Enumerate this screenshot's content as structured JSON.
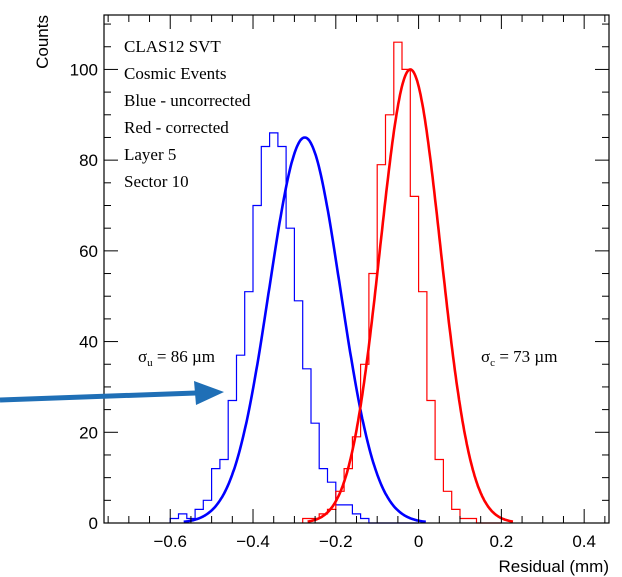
{
  "chart_data": {
    "type": "histogram",
    "title": "",
    "xlabel": "Residual (mm)",
    "ylabel": "Counts",
    "xlim": [
      -0.76,
      0.46
    ],
    "ylim": [
      0,
      112
    ],
    "x_ticks": [
      -0.6,
      -0.4,
      -0.2,
      0,
      0.2,
      0.4
    ],
    "x_tick_labels": [
      "−0.6",
      "−0.4",
      "−0.2",
      "0",
      "0.2",
      "0.4"
    ],
    "y_ticks": [
      0,
      20,
      40,
      60,
      80,
      100
    ],
    "y_tick_labels": [
      "0",
      "20",
      "40",
      "60",
      "80",
      "100"
    ],
    "grid": false,
    "legend_lines": [
      "CLAS12 SVT",
      "Cosmic Events",
      "Blue - uncorrected",
      "Red - corrected",
      "Layer 5",
      "Sector 10"
    ],
    "annotations": {
      "sigma_u": {
        "symbol": "σ",
        "sub": "u",
        "text": " = 86 µm"
      },
      "sigma_c": {
        "symbol": "σ",
        "sub": "c",
        "text": " = 73 µm"
      }
    },
    "bin_width": 0.02,
    "series": [
      {
        "color": "#0000ff",
        "bin_start": -0.6,
        "counts": [
          1,
          2,
          1,
          3,
          5,
          12,
          14,
          27,
          37,
          51,
          70,
          83,
          86,
          83,
          65,
          49,
          34,
          22,
          12,
          9,
          4,
          4,
          2,
          1,
          0,
          0,
          0,
          0,
          0,
          0
        ],
        "fit": {
          "mean": -0.275,
          "sigma": 0.086,
          "amp": 85
        }
      },
      {
        "color": "#ff0000",
        "bin_start": -0.28,
        "counts": [
          1,
          1,
          2,
          3,
          7,
          12,
          19,
          35,
          55,
          79,
          90,
          106,
          100,
          72,
          51,
          27,
          14,
          7,
          3,
          1,
          1,
          0,
          0,
          0
        ],
        "fit": {
          "mean": -0.02,
          "sigma": 0.073,
          "amp": 100
        }
      }
    ],
    "arrow": {
      "color": "#1f6fb6"
    }
  }
}
